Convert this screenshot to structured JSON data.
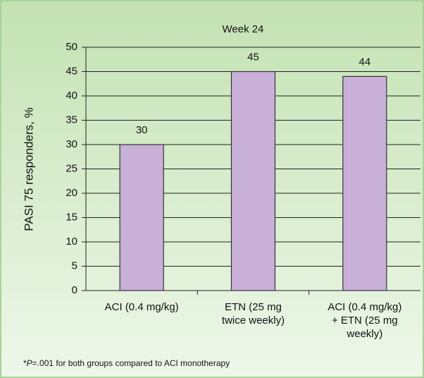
{
  "chart_data": {
    "type": "bar",
    "title": "Week 24",
    "y_label": "PASI 75 responders, %",
    "categories": [
      "ACI (0.4 mg/kg)",
      "ETN (25 mg\ntwice weekly)",
      "ACI (0.4 mg/kg)\n+ ETN (25 mg\nweekly)"
    ],
    "values": [
      30,
      45,
      44
    ],
    "color": "#c9b0d8",
    "ylim": [
      0,
      50
    ],
    "yticks": [
      0,
      5,
      10,
      15,
      20,
      25,
      30,
      35,
      40,
      45,
      50
    ],
    "grid": true,
    "footnote": {
      "prefix": "*",
      "italic": "P",
      "text": "=.001 for both groups compared to ACI monotherapy"
    }
  }
}
